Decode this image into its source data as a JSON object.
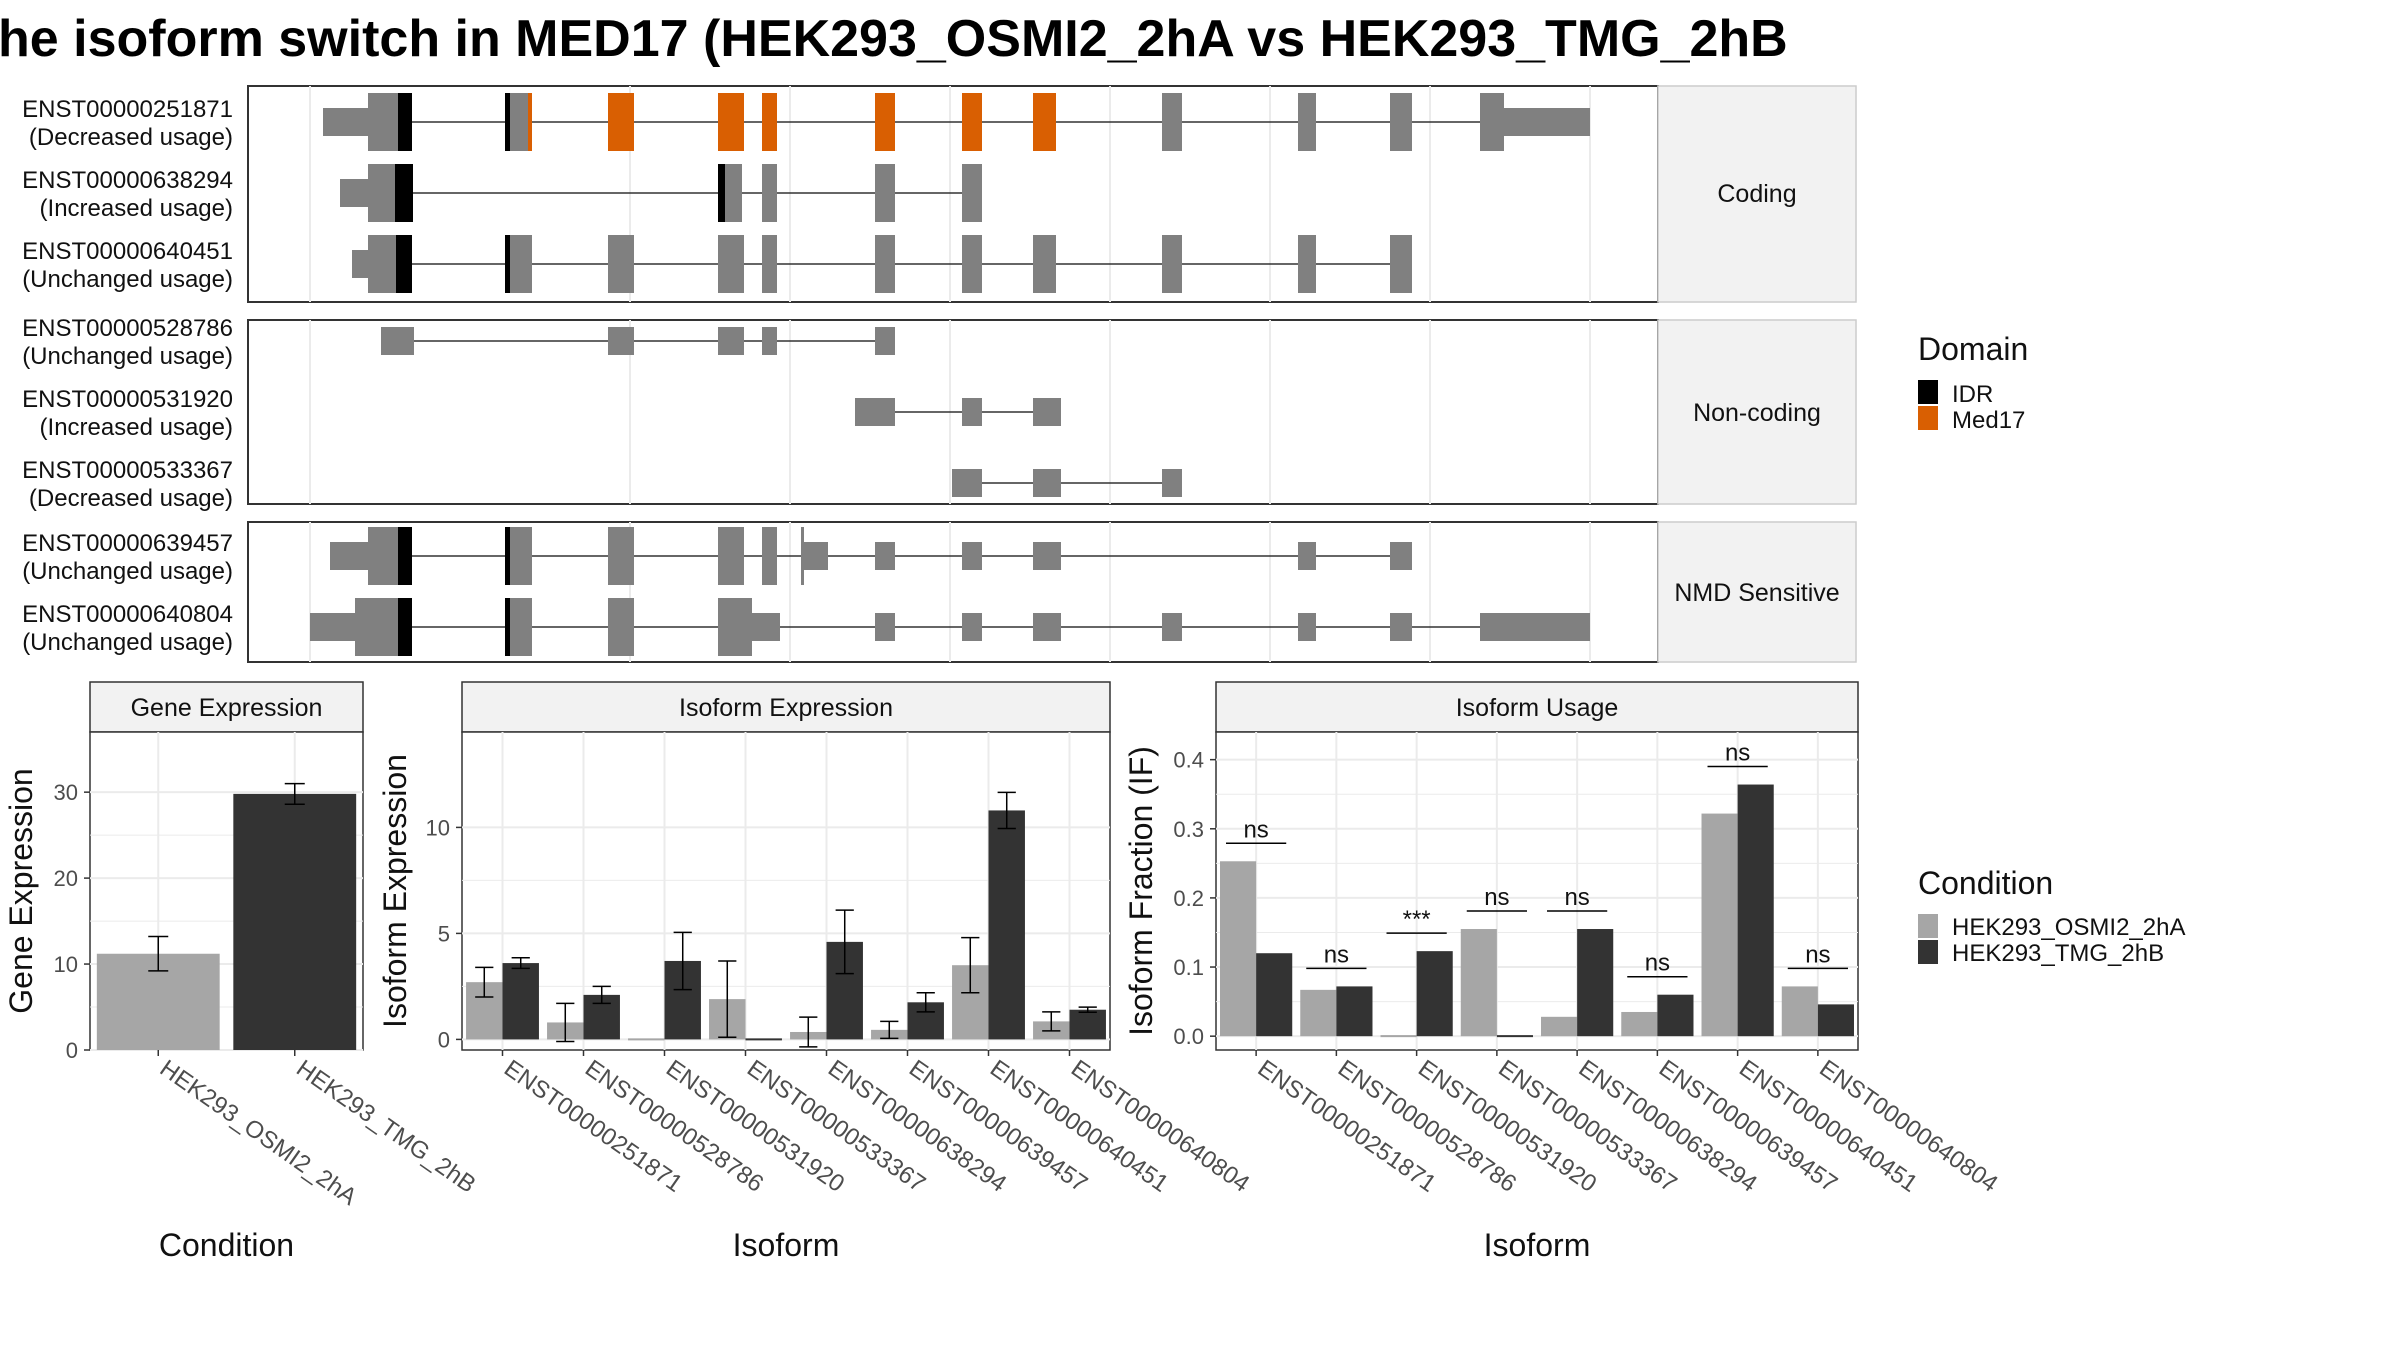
{
  "title": "he isoform switch in MED17 (HEK293_OSMI2_2hA vs HEK293_TMG_2hB",
  "colors": {
    "exon": "#808080",
    "idr": "#000000",
    "med17": "#d95f02",
    "cond_a": "#a6a6a6",
    "cond_b": "#333333",
    "strip": "#f2f2f2",
    "grid": "#ebebeb"
  },
  "legend_domain": {
    "title": "Domain",
    "items": [
      {
        "label": "IDR",
        "color": "#000000"
      },
      {
        "label": "Med17",
        "color": "#d95f02"
      }
    ]
  },
  "legend_condition": {
    "title": "Condition",
    "items": [
      {
        "label": "HEK293_OSMI2_2hA",
        "color": "#a6a6a6"
      },
      {
        "label": "HEK293_TMG_2hB",
        "color": "#333333"
      }
    ]
  },
  "transcript_panels": [
    {
      "label": "Coding",
      "tracks": [
        {
          "id": "ENST00000251871",
          "usage": "(Decreased usage)"
        },
        {
          "id": "ENST00000638294",
          "usage": "(Increased usage)"
        },
        {
          "id": "ENST00000640451",
          "usage": "(Unchanged usage)"
        }
      ]
    },
    {
      "label": "Non-coding",
      "tracks": [
        {
          "id": "ENST00000528786",
          "usage": "(Unchanged usage)"
        },
        {
          "id": "ENST00000531920",
          "usage": "(Increased usage)"
        },
        {
          "id": "ENST00000533367",
          "usage": "(Decreased usage)"
        }
      ]
    },
    {
      "label": "NMD Sensitive",
      "tracks": [
        {
          "id": "ENST00000639457",
          "usage": "(Unchanged usage)"
        },
        {
          "id": "ENST00000640804",
          "usage": "(Unchanged usage)"
        }
      ]
    }
  ],
  "chart_data": [
    {
      "type": "bar",
      "title": "Gene Expression",
      "xlabel": "Condition",
      "ylabel": "Gene Expression",
      "ylim": [
        0,
        37
      ],
      "yticks": [
        0,
        10,
        20,
        30
      ],
      "categories": [
        "HEK293_OSMI2_2hA",
        "HEK293_TMG_2hB"
      ],
      "values": [
        11.2,
        29.8
      ],
      "errors": [
        2.0,
        1.2
      ]
    },
    {
      "type": "bar",
      "title": "Isoform Expression",
      "xlabel": "Isoform",
      "ylabel": "Isoform Expression",
      "ylim": [
        -0.5,
        14.5
      ],
      "yticks": [
        0,
        5,
        10
      ],
      "categories": [
        "ENST00000251871",
        "ENST00000528786",
        "ENST00000531920",
        "ENST00000533367",
        "ENST00000638294",
        "ENST00000639457",
        "ENST00000640451",
        "ENST00000640804"
      ],
      "series": [
        {
          "name": "HEK293_OSMI2_2hA",
          "values": [
            2.7,
            0.8,
            0.0,
            1.9,
            0.35,
            0.45,
            3.5,
            0.85
          ],
          "errors": [
            0.7,
            0.9,
            0.0,
            1.8,
            0.7,
            0.4,
            1.3,
            0.45
          ]
        },
        {
          "name": "HEK293_TMG_2hB",
          "values": [
            3.6,
            2.1,
            3.7,
            0.0,
            4.6,
            1.75,
            10.8,
            1.4
          ],
          "errors": [
            0.25,
            0.4,
            1.35,
            0.0,
            1.5,
            0.45,
            0.85,
            0.12
          ]
        }
      ]
    },
    {
      "type": "bar",
      "title": "Isoform Usage",
      "xlabel": "Isoform",
      "ylabel": "Isoform Fraction (IF)",
      "ylim": [
        -0.02,
        0.44
      ],
      "yticks": [
        "0.0",
        "0.1",
        "0.2",
        "0.3",
        "0.4"
      ],
      "categories": [
        "ENST00000251871",
        "ENST00000528786",
        "ENST00000531920",
        "ENST00000533367",
        "ENST00000638294",
        "ENST00000639457",
        "ENST00000640451",
        "ENST00000640804"
      ],
      "series": [
        {
          "name": "HEK293_OSMI2_2hA",
          "values": [
            0.253,
            0.067,
            0.0,
            0.155,
            0.028,
            0.035,
            0.322,
            0.072
          ]
        },
        {
          "name": "HEK293_TMG_2hB",
          "values": [
            0.12,
            0.072,
            0.123,
            0.0,
            0.155,
            0.06,
            0.364,
            0.046
          ]
        }
      ],
      "significance": [
        "ns",
        "ns",
        "***",
        "ns",
        "ns",
        "ns",
        "ns",
        "ns"
      ]
    }
  ]
}
